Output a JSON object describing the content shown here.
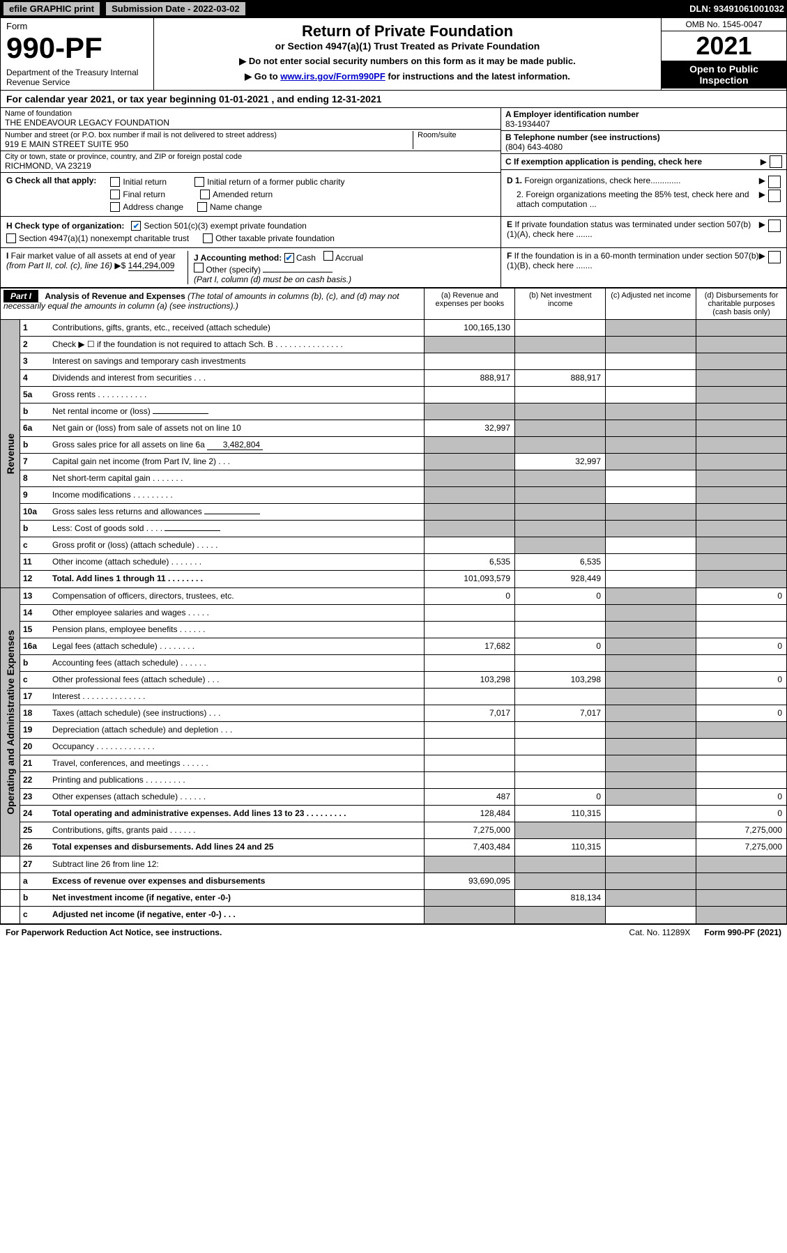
{
  "header": {
    "efile": "efile GRAPHIC print",
    "submission_label": "Submission Date - 2022-03-02",
    "dln": "DLN: 93491061001032"
  },
  "form_top": {
    "form_label": "Form",
    "form_number": "990-PF",
    "dept": "Department of the Treasury\nInternal Revenue Service",
    "title": "Return of Private Foundation",
    "subtitle": "or Section 4947(a)(1) Trust Treated as Private Foundation",
    "note1": "▶ Do not enter social security numbers on this form as it may be made public.",
    "note2_pre": "▶ Go to ",
    "note2_link": "www.irs.gov/Form990PF",
    "note2_post": " for instructions and the latest information.",
    "omb": "OMB No. 1545-0047",
    "year": "2021",
    "open": "Open to Public Inspection"
  },
  "cal_year": "For calendar year 2021, or tax year beginning 01-01-2021           , and ending 12-31-2021",
  "foundation": {
    "name_label": "Name of foundation",
    "name": "THE ENDEAVOUR LEGACY FOUNDATION",
    "addr_label": "Number and street (or P.O. box number if mail is not delivered to street address)",
    "addr": "919 E MAIN STREET SUITE 950",
    "room_label": "Room/suite",
    "city_label": "City or town, state or province, country, and ZIP or foreign postal code",
    "city": "RICHMOND, VA  23219",
    "ein_label": "A Employer identification number",
    "ein": "83-1934407",
    "phone_label": "B Telephone number (see instructions)",
    "phone": "(804) 643-4080",
    "c_label": "C If exemption application is pending, check here",
    "d1": "D 1. Foreign organizations, check here.............",
    "d2": "2. Foreign organizations meeting the 85% test, check here and attach computation ...",
    "e_label": "E  If private foundation status was terminated under section 507(b)(1)(A), check here .......",
    "f_label": "F  If the foundation is in a 60-month termination under section 507(b)(1)(B), check here .......",
    "g_label": "G Check all that apply:",
    "g_opts": [
      "Initial return",
      "Initial return of a former public charity",
      "Final return",
      "Amended return",
      "Address change",
      "Name change"
    ],
    "h_label": "H Check type of organization:",
    "h_opt1": "Section 501(c)(3) exempt private foundation",
    "h_opt2": "Section 4947(a)(1) nonexempt charitable trust",
    "h_opt3": "Other taxable private foundation",
    "i_label": "I Fair market value of all assets at end of year (from Part II, col. (c), line 16)",
    "i_value": "144,294,009",
    "j_label": "J Accounting method:",
    "j_cash": "Cash",
    "j_accrual": "Accrual",
    "j_other": "Other (specify)",
    "j_note": "(Part I, column (d) must be on cash basis.)"
  },
  "part1": {
    "label": "Part I",
    "title": "Analysis of Revenue and Expenses",
    "title_note": "(The total of amounts in columns (b), (c), and (d) may not necessarily equal the amounts in column (a) (see instructions).)",
    "col_a": "(a)   Revenue and expenses per books",
    "col_b": "(b)   Net investment income",
    "col_c": "(c)   Adjusted net income",
    "col_d": "(d)  Disbursements for charitable purposes (cash basis only)"
  },
  "side_labels": {
    "revenue": "Revenue",
    "expenses": "Operating and Administrative Expenses"
  },
  "rows": [
    {
      "n": "1",
      "d": "Contributions, gifts, grants, etc., received (attach schedule)",
      "a": "100,165,130",
      "b": "",
      "c": "g",
      "dd": "g"
    },
    {
      "n": "2",
      "d": "Check ▶ ☐ if the foundation is not required to attach Sch. B       .    .    .    .    .    .    .    .    .    .    .    .    .    .    .",
      "a": "g",
      "b": "g",
      "c": "g",
      "dd": "g"
    },
    {
      "n": "3",
      "d": "Interest on savings and temporary cash investments",
      "a": "",
      "b": "",
      "c": "",
      "dd": "g"
    },
    {
      "n": "4",
      "d": "Dividends and interest from securities     .    .    .",
      "a": "888,917",
      "b": "888,917",
      "c": "",
      "dd": "g"
    },
    {
      "n": "5a",
      "d": "Gross rents        .    .    .    .    .    .    .    .    .    .    .",
      "a": "",
      "b": "",
      "c": "",
      "dd": "g"
    },
    {
      "n": "b",
      "d": "Net rental income or (loss)  ",
      "a": "g",
      "b": "g",
      "c": "g",
      "dd": "g",
      "inline": ""
    },
    {
      "n": "6a",
      "d": "Net gain or (loss) from sale of assets not on line 10",
      "a": "32,997",
      "b": "g",
      "c": "g",
      "dd": "g"
    },
    {
      "n": "b",
      "d": "Gross sales price for all assets on line 6a",
      "a": "g",
      "b": "g",
      "c": "g",
      "dd": "g",
      "inline": "3,482,804"
    },
    {
      "n": "7",
      "d": "Capital gain net income (from Part IV, line 2)    .    .    .",
      "a": "g",
      "b": "32,997",
      "c": "g",
      "dd": "g"
    },
    {
      "n": "8",
      "d": "Net short-term capital gain   .    .    .    .    .    .    .",
      "a": "g",
      "b": "g",
      "c": "",
      "dd": "g"
    },
    {
      "n": "9",
      "d": "Income modifications  .    .    .    .    .    .    .    .    .",
      "a": "g",
      "b": "g",
      "c": "",
      "dd": "g"
    },
    {
      "n": "10a",
      "d": "Gross sales less returns and allowances",
      "a": "g",
      "b": "g",
      "c": "g",
      "dd": "g",
      "inline": ""
    },
    {
      "n": "b",
      "d": "Less: Cost of goods sold     .    .    .    .",
      "a": "g",
      "b": "g",
      "c": "g",
      "dd": "g",
      "inline": ""
    },
    {
      "n": "c",
      "d": "Gross profit or (loss) (attach schedule)      .    .    .    .    .",
      "a": "",
      "b": "g",
      "c": "",
      "dd": "g"
    },
    {
      "n": "11",
      "d": "Other income (attach schedule)    .    .    .    .    .    .    .",
      "a": "6,535",
      "b": "6,535",
      "c": "",
      "dd": "g"
    },
    {
      "n": "12",
      "d": "Total. Add lines 1 through 11    .    .    .    .    .    .    .    .",
      "a": "101,093,579",
      "b": "928,449",
      "c": "",
      "dd": "g",
      "bold": true
    }
  ],
  "exp_rows": [
    {
      "n": "13",
      "d": "Compensation of officers, directors, trustees, etc.",
      "a": "0",
      "b": "0",
      "c": "g",
      "dd": "0"
    },
    {
      "n": "14",
      "d": "Other employee salaries and wages     .    .    .    .    .",
      "a": "",
      "b": "",
      "c": "g",
      "dd": ""
    },
    {
      "n": "15",
      "d": "Pension plans, employee benefits   .    .    .    .    .    .",
      "a": "",
      "b": "",
      "c": "g",
      "dd": ""
    },
    {
      "n": "16a",
      "d": "Legal fees (attach schedule)  .    .    .    .    .    .    .    .",
      "a": "17,682",
      "b": "0",
      "c": "g",
      "dd": "0"
    },
    {
      "n": "b",
      "d": "Accounting fees (attach schedule)  .    .    .    .    .    .",
      "a": "",
      "b": "",
      "c": "g",
      "dd": ""
    },
    {
      "n": "c",
      "d": "Other professional fees (attach schedule)     .    .    .",
      "a": "103,298",
      "b": "103,298",
      "c": "g",
      "dd": "0"
    },
    {
      "n": "17",
      "d": "Interest  .    .    .    .    .    .    .    .    .    .    .    .    .    .",
      "a": "",
      "b": "",
      "c": "g",
      "dd": ""
    },
    {
      "n": "18",
      "d": "Taxes (attach schedule) (see instructions)      .    .    .",
      "a": "7,017",
      "b": "7,017",
      "c": "g",
      "dd": "0"
    },
    {
      "n": "19",
      "d": "Depreciation (attach schedule) and depletion    .    .    .",
      "a": "",
      "b": "",
      "c": "g",
      "dd": "g"
    },
    {
      "n": "20",
      "d": "Occupancy  .    .    .    .    .    .    .    .    .    .    .    .    .",
      "a": "",
      "b": "",
      "c": "g",
      "dd": ""
    },
    {
      "n": "21",
      "d": "Travel, conferences, and meetings  .    .    .    .    .    .",
      "a": "",
      "b": "",
      "c": "g",
      "dd": ""
    },
    {
      "n": "22",
      "d": "Printing and publications  .    .    .    .    .    .    .    .    .",
      "a": "",
      "b": "",
      "c": "g",
      "dd": ""
    },
    {
      "n": "23",
      "d": "Other expenses (attach schedule)  .    .    .    .    .    .",
      "a": "487",
      "b": "0",
      "c": "g",
      "dd": "0"
    },
    {
      "n": "24",
      "d": "Total operating and administrative expenses. Add lines 13 to 23    .    .    .    .    .    .    .    .    .",
      "a": "128,484",
      "b": "110,315",
      "c": "",
      "dd": "0",
      "bold": true
    },
    {
      "n": "25",
      "d": "Contributions, gifts, grants paid     .    .    .    .    .    .",
      "a": "7,275,000",
      "b": "g",
      "c": "g",
      "dd": "7,275,000"
    },
    {
      "n": "26",
      "d": "Total expenses and disbursements. Add lines 24 and 25",
      "a": "7,403,484",
      "b": "110,315",
      "c": "",
      "dd": "7,275,000",
      "bold": true
    }
  ],
  "bottom_rows": [
    {
      "n": "27",
      "d": "Subtract line 26 from line 12:",
      "a": "g",
      "b": "g",
      "c": "g",
      "dd": "g"
    },
    {
      "n": "a",
      "d": "Excess of revenue over expenses and disbursements",
      "a": "93,690,095",
      "b": "g",
      "c": "g",
      "dd": "g",
      "bold": true
    },
    {
      "n": "b",
      "d": "Net investment income (if negative, enter -0-)",
      "a": "g",
      "b": "818,134",
      "c": "g",
      "dd": "g",
      "bold": true
    },
    {
      "n": "c",
      "d": "Adjusted net income (if negative, enter -0-)    .    .    .",
      "a": "g",
      "b": "g",
      "c": "",
      "dd": "g",
      "bold": true
    }
  ],
  "footer": {
    "left": "For Paperwork Reduction Act Notice, see instructions.",
    "cat": "Cat. No. 11289X",
    "form": "Form 990-PF (2021)"
  },
  "colors": {
    "grey": "#bfbfbf",
    "black": "#000000",
    "link": "#0000cc"
  }
}
